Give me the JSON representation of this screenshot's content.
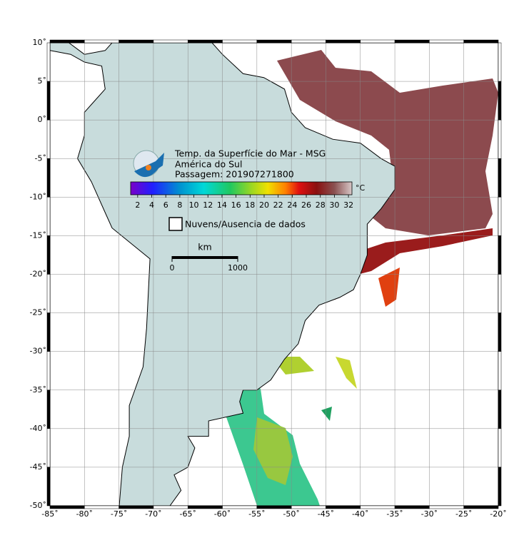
{
  "map": {
    "title": "Temp. da Superfície do Mar - MSG",
    "region": "América do Sul",
    "pass": "Passagem: 201907271800",
    "lonlim": [
      -85,
      -20
    ],
    "latlim": [
      -50,
      10
    ],
    "lon_ticks": [
      {
        "value": -85,
        "label": "-85˚"
      },
      {
        "value": -80,
        "label": "-80˚"
      },
      {
        "value": -75,
        "label": "-75˚"
      },
      {
        "value": -70,
        "label": "-70˚"
      },
      {
        "value": -65,
        "label": "-65˚"
      },
      {
        "value": -60,
        "label": "-60˚"
      },
      {
        "value": -55,
        "label": "-55˚"
      },
      {
        "value": -50,
        "label": "-50˚"
      },
      {
        "value": -45,
        "label": "-45˚"
      },
      {
        "value": -40,
        "label": "-40˚"
      },
      {
        "value": -35,
        "label": "-35˚"
      },
      {
        "value": -30,
        "label": "-30˚"
      },
      {
        "value": -25,
        "label": "-25˚"
      },
      {
        "value": -20,
        "label": "-20˚"
      }
    ],
    "lat_ticks": [
      {
        "value": 10,
        "label": "10˚"
      },
      {
        "value": 5,
        "label": "5˚"
      },
      {
        "value": 0,
        "label": "0˚"
      },
      {
        "value": -5,
        "label": "-5˚"
      },
      {
        "value": -10,
        "label": "-10˚"
      },
      {
        "value": -15,
        "label": "-15˚"
      },
      {
        "value": -20,
        "label": "-20˚"
      },
      {
        "value": -25,
        "label": "-25˚"
      },
      {
        "value": -30,
        "label": "-30˚"
      },
      {
        "value": -35,
        "label": "-35˚"
      },
      {
        "value": -40,
        "label": "-40˚"
      },
      {
        "value": -45,
        "label": "-45˚"
      },
      {
        "value": -50,
        "label": "-50˚"
      }
    ],
    "colorbar": {
      "unit": "°C",
      "lim": [
        1,
        32.5
      ],
      "ticks": [
        2,
        4,
        6,
        8,
        10,
        12,
        14,
        16,
        18,
        20,
        22,
        24,
        26,
        28,
        30,
        32
      ]
    },
    "legend": "Nuvens/Ausencia de dados",
    "scale": {
      "unit": "km",
      "ticks": [
        0,
        1000
      ]
    }
  }
}
